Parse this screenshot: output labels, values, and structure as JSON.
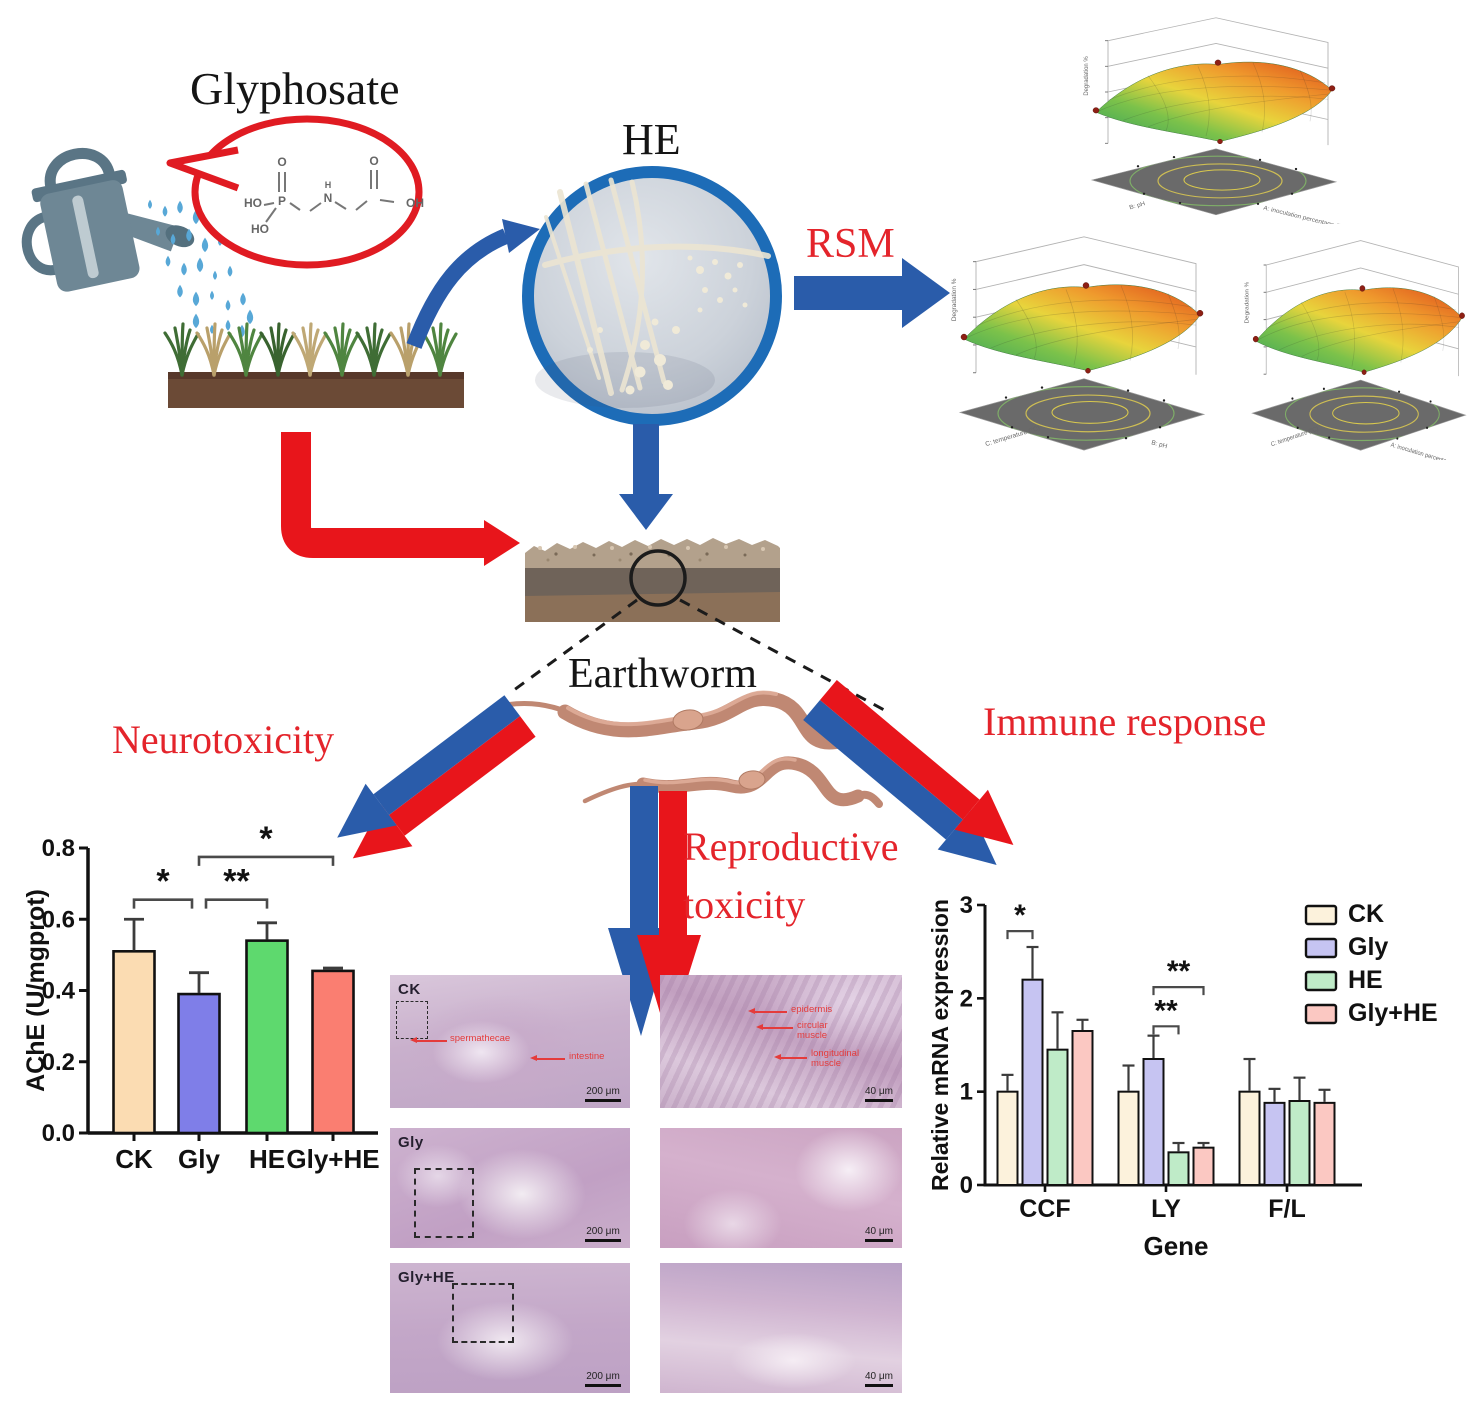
{
  "labels": {
    "glyphosate": "Glyphosate",
    "he": "HE",
    "rsm": "RSM",
    "earthworm": "Earthworm",
    "neurotoxicity": "Neurotoxicity",
    "reproductive_line1": "Reproductive",
    "reproductive_line2": "toxicity",
    "immune": "Immune response"
  },
  "rsm_plots": [
    {
      "zlabel": "Degradation %",
      "xlabel": "B: pH",
      "ylabel": "A: inoculation percentage (%)"
    },
    {
      "zlabel": "Degradation %",
      "xlabel": "C: temperature (°C)",
      "ylabel": "B: pH"
    },
    {
      "zlabel": "Degradation %",
      "xlabel": "C: temperature (°C)",
      "ylabel": "A: inoculation percentage (%)"
    }
  ],
  "chart_data": [
    {
      "id": "ache",
      "type": "bar",
      "ylabel": "AChE (U/mgprot)",
      "categories": [
        "CK",
        "Gly",
        "HE",
        "Gly+HE"
      ],
      "values": [
        0.51,
        0.39,
        0.54,
        0.455
      ],
      "errors": [
        0.09,
        0.06,
        0.05,
        0.008
      ],
      "bar_colors": [
        "#FBDCB2",
        "#7F7EE8",
        "#5ED96E",
        "#FA7E71"
      ],
      "ylim": [
        0,
        0.8
      ],
      "yticks": [
        {
          "v": 0,
          "t": "0.0"
        },
        {
          "v": 0.2,
          "t": "0.2"
        },
        {
          "v": 0.4,
          "t": "0.4"
        },
        {
          "v": 0.6,
          "t": "0.6"
        },
        {
          "v": 0.8,
          "t": "0.8"
        }
      ],
      "significance": [
        {
          "a": 0,
          "b": 1,
          "h": 0.655,
          "label": "*",
          "off_a": 0,
          "off_b": -7
        },
        {
          "a": 1,
          "b": 2,
          "h": 0.655,
          "label": "**",
          "off_a": 7,
          "off_b": 0
        },
        {
          "a": 1,
          "b": 3,
          "h": 0.775,
          "label": "*",
          "off_a": 0,
          "off_b": 0
        }
      ]
    },
    {
      "id": "mrna",
      "type": "grouped-bar",
      "ylabel": "Relative mRNA expression",
      "xlabel": "Gene",
      "categories": [
        "CCF",
        "LY",
        "F/L"
      ],
      "series": [
        {
          "name": "CK",
          "color": "#FCF2DC",
          "values": [
            1.0,
            1.0,
            1.0
          ],
          "errors": [
            0.18,
            0.28,
            0.35
          ]
        },
        {
          "name": "Gly",
          "color": "#C6C4F2",
          "values": [
            2.2,
            1.35,
            0.88
          ],
          "errors": [
            0.35,
            0.25,
            0.15
          ]
        },
        {
          "name": "HE",
          "color": "#BFEBC8",
          "values": [
            1.45,
            0.35,
            0.9
          ],
          "errors": [
            0.4,
            0.1,
            0.25
          ]
        },
        {
          "name": "Gly+HE",
          "color": "#FBC8C2",
          "values": [
            1.65,
            0.4,
            0.88
          ],
          "errors": [
            0.12,
            0.05,
            0.14
          ]
        }
      ],
      "ylim": [
        0,
        3
      ],
      "yticks": [
        {
          "v": 0,
          "t": "0"
        },
        {
          "v": 1,
          "t": "1"
        },
        {
          "v": 2,
          "t": "2"
        },
        {
          "v": 3,
          "t": "3"
        }
      ],
      "significance": [
        {
          "cat": 0,
          "a": 0,
          "b": 1,
          "h": 2.72,
          "label": "*"
        },
        {
          "cat": 1,
          "a": 1,
          "b": 3,
          "h": 2.12,
          "label": "**"
        },
        {
          "cat": 1,
          "a": 1,
          "b": 2,
          "h": 1.7,
          "label": "**"
        }
      ]
    }
  ],
  "histology": {
    "rows": [
      {
        "label": "CK",
        "scale_left": "200 μm",
        "scale_right": "40 μm"
      },
      {
        "label": "Gly",
        "scale_left": "200 μm",
        "scale_right": "40 μm"
      },
      {
        "label": "Gly+HE",
        "scale_left": "200 μm",
        "scale_right": "40 μm"
      }
    ],
    "annotations_left": [
      "spermathecae",
      "intestine"
    ],
    "annotations_right": [
      "epidermis",
      "circular muscle",
      "longitudinal muscle"
    ]
  }
}
